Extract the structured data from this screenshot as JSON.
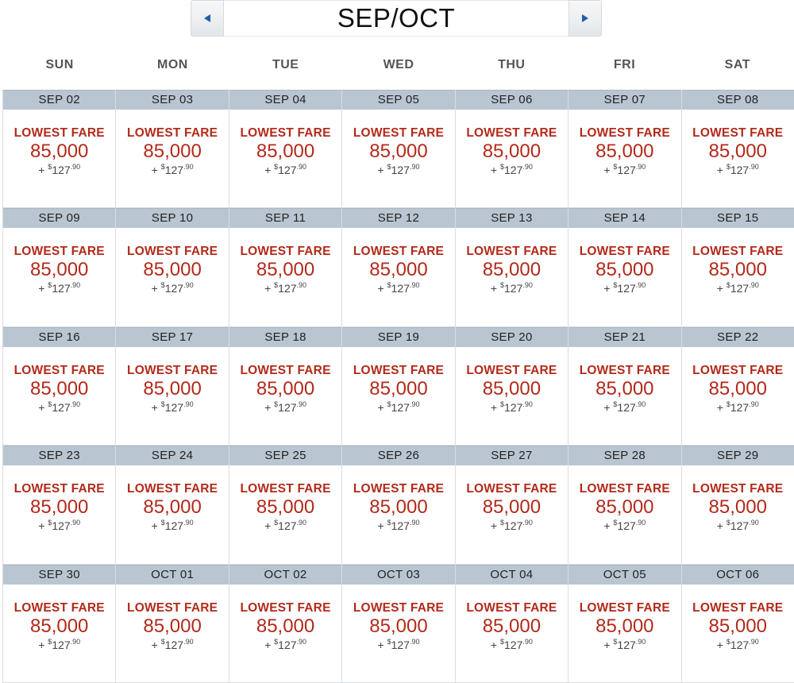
{
  "header": {
    "title": "SEP/OCT",
    "prev_icon": "triangle-left",
    "next_icon": "triangle-right"
  },
  "weekdays": [
    "SUN",
    "MON",
    "TUE",
    "WED",
    "THU",
    "FRI",
    "SAT"
  ],
  "colors": {
    "fare_red": "#b22a1a",
    "date_bar": "#b9c6d2",
    "nav_arrow": "#1f5fa8"
  },
  "days": [
    {
      "date": "SEP 02",
      "label": "LOWEST FARE",
      "miles": "85,000",
      "plus": "+",
      "currency": "$",
      "amount": "127",
      "cents": ".90"
    },
    {
      "date": "SEP 03",
      "label": "LOWEST FARE",
      "miles": "85,000",
      "plus": "+",
      "currency": "$",
      "amount": "127",
      "cents": ".90"
    },
    {
      "date": "SEP 04",
      "label": "LOWEST FARE",
      "miles": "85,000",
      "plus": "+",
      "currency": "$",
      "amount": "127",
      "cents": ".90"
    },
    {
      "date": "SEP 05",
      "label": "LOWEST FARE",
      "miles": "85,000",
      "plus": "+",
      "currency": "$",
      "amount": "127",
      "cents": ".90"
    },
    {
      "date": "SEP 06",
      "label": "LOWEST FARE",
      "miles": "85,000",
      "plus": "+",
      "currency": "$",
      "amount": "127",
      "cents": ".90"
    },
    {
      "date": "SEP 07",
      "label": "LOWEST FARE",
      "miles": "85,000",
      "plus": "+",
      "currency": "$",
      "amount": "127",
      "cents": ".90"
    },
    {
      "date": "SEP 08",
      "label": "LOWEST FARE",
      "miles": "85,000",
      "plus": "+",
      "currency": "$",
      "amount": "127",
      "cents": ".90"
    },
    {
      "date": "SEP 09",
      "label": "LOWEST FARE",
      "miles": "85,000",
      "plus": "+",
      "currency": "$",
      "amount": "127",
      "cents": ".90"
    },
    {
      "date": "SEP 10",
      "label": "LOWEST FARE",
      "miles": "85,000",
      "plus": "+",
      "currency": "$",
      "amount": "127",
      "cents": ".90"
    },
    {
      "date": "SEP 11",
      "label": "LOWEST FARE",
      "miles": "85,000",
      "plus": "+",
      "currency": "$",
      "amount": "127",
      "cents": ".90"
    },
    {
      "date": "SEP 12",
      "label": "LOWEST FARE",
      "miles": "85,000",
      "plus": "+",
      "currency": "$",
      "amount": "127",
      "cents": ".90"
    },
    {
      "date": "SEP 13",
      "label": "LOWEST FARE",
      "miles": "85,000",
      "plus": "+",
      "currency": "$",
      "amount": "127",
      "cents": ".90"
    },
    {
      "date": "SEP 14",
      "label": "LOWEST FARE",
      "miles": "85,000",
      "plus": "+",
      "currency": "$",
      "amount": "127",
      "cents": ".90"
    },
    {
      "date": "SEP 15",
      "label": "LOWEST FARE",
      "miles": "85,000",
      "plus": "+",
      "currency": "$",
      "amount": "127",
      "cents": ".90"
    },
    {
      "date": "SEP 16",
      "label": "LOWEST FARE",
      "miles": "85,000",
      "plus": "+",
      "currency": "$",
      "amount": "127",
      "cents": ".90"
    },
    {
      "date": "SEP 17",
      "label": "LOWEST FARE",
      "miles": "85,000",
      "plus": "+",
      "currency": "$",
      "amount": "127",
      "cents": ".90"
    },
    {
      "date": "SEP 18",
      "label": "LOWEST FARE",
      "miles": "85,000",
      "plus": "+",
      "currency": "$",
      "amount": "127",
      "cents": ".90"
    },
    {
      "date": "SEP 19",
      "label": "LOWEST FARE",
      "miles": "85,000",
      "plus": "+",
      "currency": "$",
      "amount": "127",
      "cents": ".90"
    },
    {
      "date": "SEP 20",
      "label": "LOWEST FARE",
      "miles": "85,000",
      "plus": "+",
      "currency": "$",
      "amount": "127",
      "cents": ".90"
    },
    {
      "date": "SEP 21",
      "label": "LOWEST FARE",
      "miles": "85,000",
      "plus": "+",
      "currency": "$",
      "amount": "127",
      "cents": ".90"
    },
    {
      "date": "SEP 22",
      "label": "LOWEST FARE",
      "miles": "85,000",
      "plus": "+",
      "currency": "$",
      "amount": "127",
      "cents": ".90"
    },
    {
      "date": "SEP 23",
      "label": "LOWEST FARE",
      "miles": "85,000",
      "plus": "+",
      "currency": "$",
      "amount": "127",
      "cents": ".90"
    },
    {
      "date": "SEP 24",
      "label": "LOWEST FARE",
      "miles": "85,000",
      "plus": "+",
      "currency": "$",
      "amount": "127",
      "cents": ".90"
    },
    {
      "date": "SEP 25",
      "label": "LOWEST FARE",
      "miles": "85,000",
      "plus": "+",
      "currency": "$",
      "amount": "127",
      "cents": ".90"
    },
    {
      "date": "SEP 26",
      "label": "LOWEST FARE",
      "miles": "85,000",
      "plus": "+",
      "currency": "$",
      "amount": "127",
      "cents": ".90"
    },
    {
      "date": "SEP 27",
      "label": "LOWEST FARE",
      "miles": "85,000",
      "plus": "+",
      "currency": "$",
      "amount": "127",
      "cents": ".90"
    },
    {
      "date": "SEP 28",
      "label": "LOWEST FARE",
      "miles": "85,000",
      "plus": "+",
      "currency": "$",
      "amount": "127",
      "cents": ".90"
    },
    {
      "date": "SEP 29",
      "label": "LOWEST FARE",
      "miles": "85,000",
      "plus": "+",
      "currency": "$",
      "amount": "127",
      "cents": ".90"
    },
    {
      "date": "SEP 30",
      "label": "LOWEST FARE",
      "miles": "85,000",
      "plus": "+",
      "currency": "$",
      "amount": "127",
      "cents": ".90"
    },
    {
      "date": "OCT 01",
      "label": "LOWEST FARE",
      "miles": "85,000",
      "plus": "+",
      "currency": "$",
      "amount": "127",
      "cents": ".90"
    },
    {
      "date": "OCT 02",
      "label": "LOWEST FARE",
      "miles": "85,000",
      "plus": "+",
      "currency": "$",
      "amount": "127",
      "cents": ".90"
    },
    {
      "date": "OCT 03",
      "label": "LOWEST FARE",
      "miles": "85,000",
      "plus": "+",
      "currency": "$",
      "amount": "127",
      "cents": ".90"
    },
    {
      "date": "OCT 04",
      "label": "LOWEST FARE",
      "miles": "85,000",
      "plus": "+",
      "currency": "$",
      "amount": "127",
      "cents": ".90"
    },
    {
      "date": "OCT 05",
      "label": "LOWEST FARE",
      "miles": "85,000",
      "plus": "+",
      "currency": "$",
      "amount": "127",
      "cents": ".90"
    },
    {
      "date": "OCT 06",
      "label": "LOWEST FARE",
      "miles": "85,000",
      "plus": "+",
      "currency": "$",
      "amount": "127",
      "cents": ".90"
    }
  ]
}
